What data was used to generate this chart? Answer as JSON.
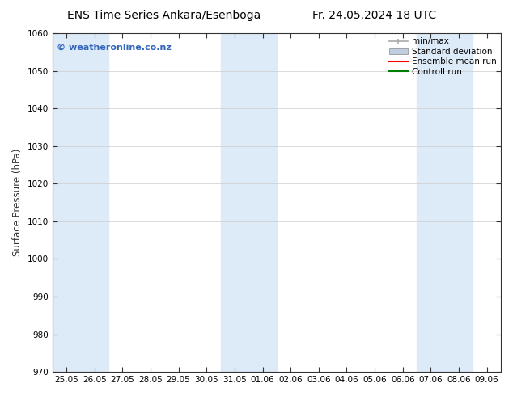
{
  "title_left": "ENS Time Series Ankara/Esenboga",
  "title_right": "Fr. 24.05.2024 18 UTC",
  "ylabel": "Surface Pressure (hPa)",
  "ylim": [
    970,
    1060
  ],
  "yticks": [
    970,
    980,
    990,
    1000,
    1010,
    1020,
    1030,
    1040,
    1050,
    1060
  ],
  "xtick_labels": [
    "25.05",
    "26.05",
    "27.05",
    "28.05",
    "29.05",
    "30.05",
    "31.05",
    "01.06",
    "02.06",
    "03.06",
    "04.06",
    "05.06",
    "06.06",
    "07.06",
    "08.06",
    "09.06"
  ],
  "shaded_indices": [
    0,
    1,
    6,
    7,
    13,
    14
  ],
  "shaded_color": "#ddeaf7",
  "watermark_text": "© weatheronline.co.nz",
  "watermark_color": "#3366bb",
  "legend_items": [
    {
      "label": "min/max",
      "color": "#aaaaaa"
    },
    {
      "label": "Standard deviation",
      "color": "#c0cfe0"
    },
    {
      "label": "Ensemble mean run",
      "color": "red"
    },
    {
      "label": "Controll run",
      "color": "green"
    }
  ],
  "background_color": "#ffffff",
  "plot_bg_color": "#ffffff",
  "grid_color": "#cccccc",
  "title_fontsize": 10,
  "tick_fontsize": 7.5,
  "ylabel_fontsize": 8.5
}
